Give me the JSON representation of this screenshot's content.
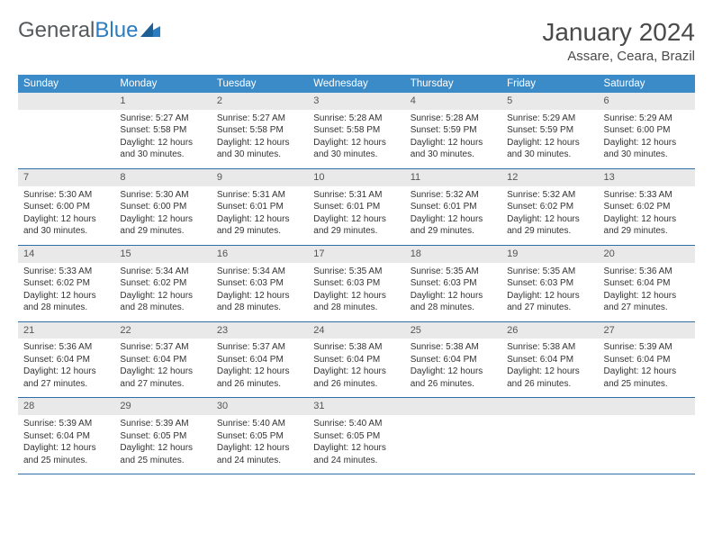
{
  "logo": {
    "text1": "General",
    "text2": "Blue"
  },
  "title": "January 2024",
  "location": "Assare, Ceara, Brazil",
  "colors": {
    "header_bg": "#3b8bc8",
    "header_text": "#ffffff",
    "row_border": "#2f6fa8",
    "daynum_bg": "#e9e9e9",
    "text": "#333333",
    "title_text": "#4a4a4a",
    "logo_gray": "#565a5c",
    "logo_blue": "#2b7cc0"
  },
  "typography": {
    "title_fontsize": 28,
    "location_fontsize": 15,
    "dayhead_fontsize": 11.5,
    "cell_fontsize": 10
  },
  "day_headers": [
    "Sunday",
    "Monday",
    "Tuesday",
    "Wednesday",
    "Thursday",
    "Friday",
    "Saturday"
  ],
  "weeks": [
    [
      {
        "num": "",
        "sunrise": "",
        "sunset": "",
        "daylight": ""
      },
      {
        "num": "1",
        "sunrise": "Sunrise: 5:27 AM",
        "sunset": "Sunset: 5:58 PM",
        "daylight": "Daylight: 12 hours and 30 minutes."
      },
      {
        "num": "2",
        "sunrise": "Sunrise: 5:27 AM",
        "sunset": "Sunset: 5:58 PM",
        "daylight": "Daylight: 12 hours and 30 minutes."
      },
      {
        "num": "3",
        "sunrise": "Sunrise: 5:28 AM",
        "sunset": "Sunset: 5:58 PM",
        "daylight": "Daylight: 12 hours and 30 minutes."
      },
      {
        "num": "4",
        "sunrise": "Sunrise: 5:28 AM",
        "sunset": "Sunset: 5:59 PM",
        "daylight": "Daylight: 12 hours and 30 minutes."
      },
      {
        "num": "5",
        "sunrise": "Sunrise: 5:29 AM",
        "sunset": "Sunset: 5:59 PM",
        "daylight": "Daylight: 12 hours and 30 minutes."
      },
      {
        "num": "6",
        "sunrise": "Sunrise: 5:29 AM",
        "sunset": "Sunset: 6:00 PM",
        "daylight": "Daylight: 12 hours and 30 minutes."
      }
    ],
    [
      {
        "num": "7",
        "sunrise": "Sunrise: 5:30 AM",
        "sunset": "Sunset: 6:00 PM",
        "daylight": "Daylight: 12 hours and 30 minutes."
      },
      {
        "num": "8",
        "sunrise": "Sunrise: 5:30 AM",
        "sunset": "Sunset: 6:00 PM",
        "daylight": "Daylight: 12 hours and 29 minutes."
      },
      {
        "num": "9",
        "sunrise": "Sunrise: 5:31 AM",
        "sunset": "Sunset: 6:01 PM",
        "daylight": "Daylight: 12 hours and 29 minutes."
      },
      {
        "num": "10",
        "sunrise": "Sunrise: 5:31 AM",
        "sunset": "Sunset: 6:01 PM",
        "daylight": "Daylight: 12 hours and 29 minutes."
      },
      {
        "num": "11",
        "sunrise": "Sunrise: 5:32 AM",
        "sunset": "Sunset: 6:01 PM",
        "daylight": "Daylight: 12 hours and 29 minutes."
      },
      {
        "num": "12",
        "sunrise": "Sunrise: 5:32 AM",
        "sunset": "Sunset: 6:02 PM",
        "daylight": "Daylight: 12 hours and 29 minutes."
      },
      {
        "num": "13",
        "sunrise": "Sunrise: 5:33 AM",
        "sunset": "Sunset: 6:02 PM",
        "daylight": "Daylight: 12 hours and 29 minutes."
      }
    ],
    [
      {
        "num": "14",
        "sunrise": "Sunrise: 5:33 AM",
        "sunset": "Sunset: 6:02 PM",
        "daylight": "Daylight: 12 hours and 28 minutes."
      },
      {
        "num": "15",
        "sunrise": "Sunrise: 5:34 AM",
        "sunset": "Sunset: 6:02 PM",
        "daylight": "Daylight: 12 hours and 28 minutes."
      },
      {
        "num": "16",
        "sunrise": "Sunrise: 5:34 AM",
        "sunset": "Sunset: 6:03 PM",
        "daylight": "Daylight: 12 hours and 28 minutes."
      },
      {
        "num": "17",
        "sunrise": "Sunrise: 5:35 AM",
        "sunset": "Sunset: 6:03 PM",
        "daylight": "Daylight: 12 hours and 28 minutes."
      },
      {
        "num": "18",
        "sunrise": "Sunrise: 5:35 AM",
        "sunset": "Sunset: 6:03 PM",
        "daylight": "Daylight: 12 hours and 28 minutes."
      },
      {
        "num": "19",
        "sunrise": "Sunrise: 5:35 AM",
        "sunset": "Sunset: 6:03 PM",
        "daylight": "Daylight: 12 hours and 27 minutes."
      },
      {
        "num": "20",
        "sunrise": "Sunrise: 5:36 AM",
        "sunset": "Sunset: 6:04 PM",
        "daylight": "Daylight: 12 hours and 27 minutes."
      }
    ],
    [
      {
        "num": "21",
        "sunrise": "Sunrise: 5:36 AM",
        "sunset": "Sunset: 6:04 PM",
        "daylight": "Daylight: 12 hours and 27 minutes."
      },
      {
        "num": "22",
        "sunrise": "Sunrise: 5:37 AM",
        "sunset": "Sunset: 6:04 PM",
        "daylight": "Daylight: 12 hours and 27 minutes."
      },
      {
        "num": "23",
        "sunrise": "Sunrise: 5:37 AM",
        "sunset": "Sunset: 6:04 PM",
        "daylight": "Daylight: 12 hours and 26 minutes."
      },
      {
        "num": "24",
        "sunrise": "Sunrise: 5:38 AM",
        "sunset": "Sunset: 6:04 PM",
        "daylight": "Daylight: 12 hours and 26 minutes."
      },
      {
        "num": "25",
        "sunrise": "Sunrise: 5:38 AM",
        "sunset": "Sunset: 6:04 PM",
        "daylight": "Daylight: 12 hours and 26 minutes."
      },
      {
        "num": "26",
        "sunrise": "Sunrise: 5:38 AM",
        "sunset": "Sunset: 6:04 PM",
        "daylight": "Daylight: 12 hours and 26 minutes."
      },
      {
        "num": "27",
        "sunrise": "Sunrise: 5:39 AM",
        "sunset": "Sunset: 6:04 PM",
        "daylight": "Daylight: 12 hours and 25 minutes."
      }
    ],
    [
      {
        "num": "28",
        "sunrise": "Sunrise: 5:39 AM",
        "sunset": "Sunset: 6:04 PM",
        "daylight": "Daylight: 12 hours and 25 minutes."
      },
      {
        "num": "29",
        "sunrise": "Sunrise: 5:39 AM",
        "sunset": "Sunset: 6:05 PM",
        "daylight": "Daylight: 12 hours and 25 minutes."
      },
      {
        "num": "30",
        "sunrise": "Sunrise: 5:40 AM",
        "sunset": "Sunset: 6:05 PM",
        "daylight": "Daylight: 12 hours and 24 minutes."
      },
      {
        "num": "31",
        "sunrise": "Sunrise: 5:40 AM",
        "sunset": "Sunset: 6:05 PM",
        "daylight": "Daylight: 12 hours and 24 minutes."
      },
      {
        "num": "",
        "sunrise": "",
        "sunset": "",
        "daylight": ""
      },
      {
        "num": "",
        "sunrise": "",
        "sunset": "",
        "daylight": ""
      },
      {
        "num": "",
        "sunrise": "",
        "sunset": "",
        "daylight": ""
      }
    ]
  ]
}
